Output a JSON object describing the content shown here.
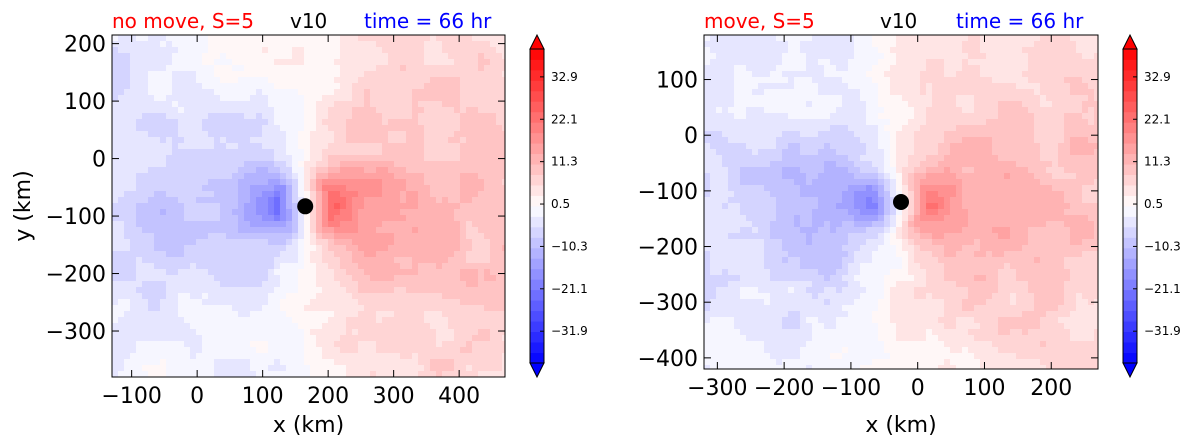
{
  "chart_data": [
    {
      "type": "heatmap",
      "title_left": "no move, S=5",
      "title_center": "v10",
      "title_right": "time = 66 hr",
      "title_left_color": "#ff0000",
      "title_center_color": "#000000",
      "title_right_color": "#0000ff",
      "xlabel": "x (km)",
      "ylabel": "y (km)",
      "xlim": [
        -130,
        470
      ],
      "ylim": [
        -380,
        215
      ],
      "xticks": [
        -100,
        0,
        100,
        200,
        300,
        400
      ],
      "yticks": [
        200,
        100,
        0,
        -100,
        -200,
        -300
      ],
      "xtick_labels": [
        "−100",
        "0",
        "100",
        "200",
        "300",
        "400"
      ],
      "ytick_labels": [
        "200",
        "100",
        "0",
        "−100",
        "−200",
        "−300"
      ],
      "center_marker": {
        "x": 165,
        "y": -83
      },
      "colorbar_ticks": [
        32.9,
        22.1,
        11.3,
        0.5,
        -10.3,
        -21.1,
        -31.9
      ],
      "colorbar_tick_labels": [
        "32.9",
        "22.1",
        "11.3",
        "0.5",
        "−10.3",
        "−21.1",
        "−31.9"
      ],
      "colorbar_range": [
        -40,
        40
      ],
      "colormap": "bwr"
    },
    {
      "type": "heatmap",
      "title_left": "move, S=5",
      "title_center": "v10",
      "title_right": "time = 66 hr",
      "title_left_color": "#ff0000",
      "title_center_color": "#000000",
      "title_right_color": "#0000ff",
      "xlabel": "x (km)",
      "ylabel": "",
      "xlim": [
        -320,
        270
      ],
      "ylim": [
        -420,
        180
      ],
      "xticks": [
        -300,
        -200,
        -100,
        0,
        100,
        200
      ],
      "yticks": [
        100,
        0,
        -100,
        -200,
        -300,
        -400
      ],
      "xtick_labels": [
        "−300",
        "−200",
        "−100",
        "0",
        "100",
        "200"
      ],
      "ytick_labels": [
        "100",
        "0",
        "−100",
        "−200",
        "−300",
        "−400"
      ],
      "center_marker": {
        "x": -25,
        "y": -120
      },
      "colorbar_ticks": [
        32.9,
        22.1,
        11.3,
        0.5,
        -10.3,
        -21.1,
        -31.9
      ],
      "colorbar_tick_labels": [
        "32.9",
        "22.1",
        "11.3",
        "0.5",
        "−10.3",
        "−21.1",
        "−31.9"
      ],
      "colorbar_range": [
        -40,
        40
      ],
      "colormap": "bwr"
    }
  ]
}
